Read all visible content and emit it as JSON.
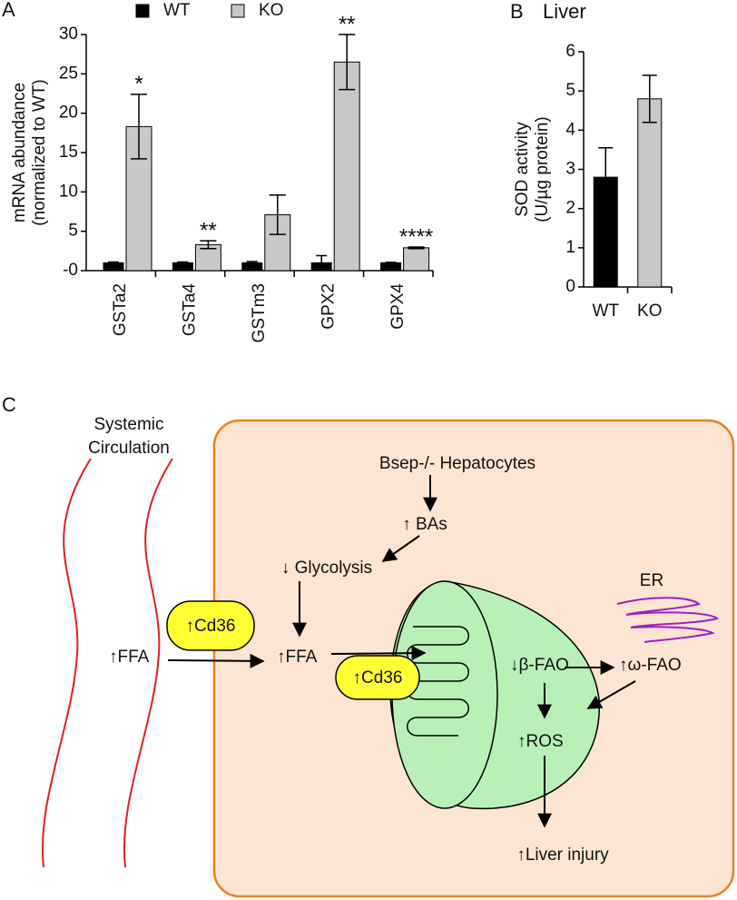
{
  "chart_data": [
    {
      "type": "bar",
      "panel": "A",
      "categories": [
        "GSTa2",
        "GSTa4",
        "GSTm3",
        "GPX2",
        "GPX4"
      ],
      "series": [
        {
          "name": "WT",
          "color": "#000000",
          "values": [
            1,
            1,
            1,
            1,
            1
          ],
          "errors": [
            0.1,
            0.1,
            0.15,
            0.9,
            0.05
          ]
        },
        {
          "name": "KO",
          "color": "#c8c8c8",
          "values": [
            18.3,
            3.3,
            7.1,
            26.5,
            2.9
          ],
          "errors": [
            4.1,
            0.5,
            2.5,
            3.5,
            0.1
          ]
        }
      ],
      "annotations": [
        "*",
        "**",
        null,
        "**",
        "****"
      ],
      "y_label": [
        "mRNA abundance",
        "(normalized to WT)"
      ],
      "ylim": [
        0,
        30
      ],
      "yticks": [
        {
          "value": 0,
          "label": "-0"
        },
        5,
        10,
        15,
        20,
        25,
        30
      ]
    },
    {
      "type": "bar",
      "panel": "B",
      "title": "Liver",
      "categories": [
        "WT",
        "KO"
      ],
      "values": [
        2.8,
        4.8
      ],
      "errors": [
        0.75,
        0.6
      ],
      "colors": [
        "#000000",
        "#c8c8c8"
      ],
      "y_label": [
        "SOD activity",
        "(U/µg protein)"
      ],
      "ylim": [
        0,
        6
      ],
      "yticks": [
        0,
        1,
        2,
        3,
        4,
        5,
        6
      ]
    }
  ],
  "diagram": {
    "panel": "C",
    "circulation": [
      "Systemic",
      "Circulation"
    ],
    "cell": "Bsep-/- Hepatocytes",
    "bas": "↑ BAs",
    "glycolysis": "↓ Glycolysis",
    "ffa_blood": "↑FFA",
    "cd36_membrane": "↑Cd36",
    "ffa_cell": "↑FFA",
    "cd36_mito": "↑Cd36",
    "beta_fao": "↓β-FAO",
    "omega_fao": "↑ω-FAO",
    "er": "ER",
    "ros": "↑ROS",
    "injury": "↑Liver injury"
  }
}
